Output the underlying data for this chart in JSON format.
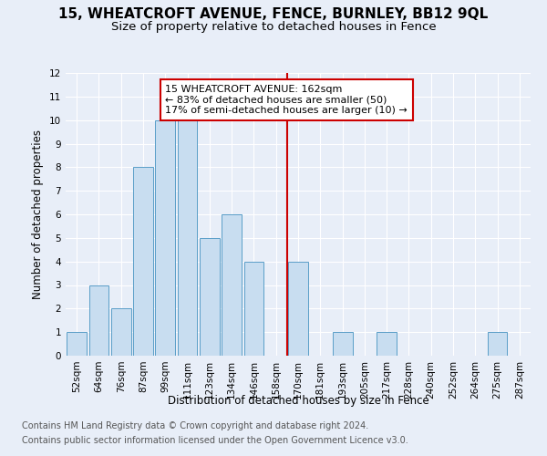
{
  "title": "15, WHEATCROFT AVENUE, FENCE, BURNLEY, BB12 9QL",
  "subtitle": "Size of property relative to detached houses in Fence",
  "xlabel": "Distribution of detached houses by size in Fence",
  "ylabel": "Number of detached properties",
  "categories": [
    "52sqm",
    "64sqm",
    "76sqm",
    "87sqm",
    "99sqm",
    "111sqm",
    "123sqm",
    "134sqm",
    "146sqm",
    "158sqm",
    "170sqm",
    "181sqm",
    "193sqm",
    "205sqm",
    "217sqm",
    "228sqm",
    "240sqm",
    "252sqm",
    "264sqm",
    "275sqm",
    "287sqm"
  ],
  "values": [
    1,
    3,
    2,
    8,
    10,
    10,
    5,
    6,
    4,
    0,
    4,
    0,
    1,
    0,
    1,
    0,
    0,
    0,
    0,
    1,
    0
  ],
  "bar_color": "#c8ddf0",
  "bar_edge_color": "#5a9ec8",
  "vline_x_index": 9.5,
  "vline_color": "#cc0000",
  "annotation_line1": "15 WHEATCROFT AVENUE: 162sqm",
  "annotation_line2": "← 83% of detached houses are smaller (50)",
  "annotation_line3": "17% of semi-detached houses are larger (10) →",
  "annotation_box_color": "#cc0000",
  "ylim": [
    0,
    12
  ],
  "yticks": [
    0,
    1,
    2,
    3,
    4,
    5,
    6,
    7,
    8,
    9,
    10,
    11,
    12
  ],
  "footnote_line1": "Contains HM Land Registry data © Crown copyright and database right 2024.",
  "footnote_line2": "Contains public sector information licensed under the Open Government Licence v3.0.",
  "background_color": "#e8eef8",
  "plot_bg_color": "#e8eef8",
  "title_fontsize": 11,
  "subtitle_fontsize": 9.5,
  "ylabel_fontsize": 8.5,
  "xlabel_fontsize": 8.5,
  "tick_fontsize": 7.5,
  "footnote_fontsize": 7,
  "annotation_fontsize": 8
}
